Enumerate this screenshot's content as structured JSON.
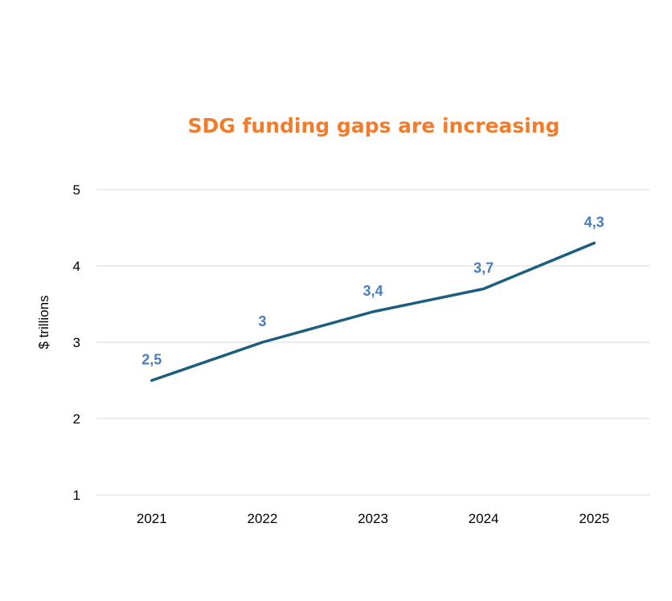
{
  "chart_data": {
    "type": "line",
    "title": "SDG funding gaps are increasing",
    "xlabel": "",
    "ylabel": "$ trillions",
    "categories": [
      "2021",
      "2022",
      "2023",
      "2024",
      "2025"
    ],
    "values": [
      2.5,
      3,
      3.4,
      3.7,
      4.3
    ],
    "data_labels": [
      "2,5",
      "3",
      "3,4",
      "3,7",
      "4,3"
    ],
    "ylim": [
      1,
      5
    ],
    "yticks": [
      "1",
      "2",
      "3",
      "4",
      "5"
    ],
    "grid": true,
    "legend": "none",
    "colors": {
      "title": "#F07D2E",
      "line": "#1B5E7E",
      "data_label": "#4A7DBF",
      "grid": "#D9D9D9"
    }
  }
}
